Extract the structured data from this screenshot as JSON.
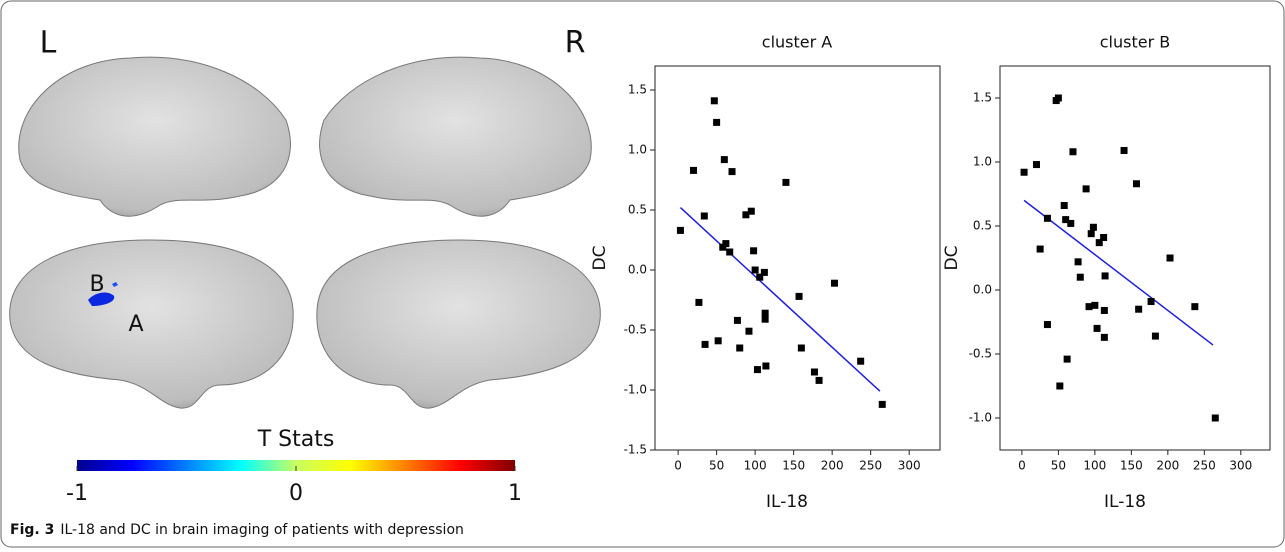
{
  "panel_labels": {
    "left": "L",
    "right": "R",
    "cluster_b": "B",
    "cluster_a": "A"
  },
  "colorbar": {
    "title": "T Stats",
    "lim": [
      -1,
      1
    ],
    "ticks": [
      -1,
      0,
      1
    ]
  },
  "caption": {
    "label": "Fig. 3",
    "text": "IL-18 and DC in brain imaging of patients with depression"
  },
  "chart_data": [
    {
      "type": "scatter",
      "title": "cluster A",
      "x_label": "IL-18",
      "y_label": "DC",
      "color": "#000000",
      "x": [
        3,
        20,
        27,
        34,
        35,
        47,
        50,
        52,
        58,
        60,
        62,
        67,
        70,
        77,
        80,
        88,
        92,
        95,
        98,
        100,
        103,
        106,
        112,
        113,
        113,
        114,
        140,
        157,
        160,
        177,
        183,
        203,
        237,
        265
      ],
      "y": [
        0.33,
        0.83,
        -0.27,
        0.45,
        -0.62,
        1.41,
        1.23,
        -0.59,
        0.19,
        0.92,
        0.22,
        0.15,
        0.82,
        -0.42,
        -0.65,
        0.46,
        -0.51,
        0.49,
        0.16,
        0.0,
        -0.83,
        -0.06,
        -0.02,
        -0.36,
        -0.41,
        -0.8,
        0.73,
        -0.22,
        -0.65,
        -0.85,
        -0.92,
        -0.11,
        -0.76,
        -1.12
      ],
      "fit_line": {
        "x": [
          3,
          262
        ],
        "y": [
          0.52,
          -1.01
        ],
        "color": "#1f1fe0"
      },
      "xlim": [
        -30,
        340
      ],
      "ylim": [
        -1.5,
        1.7
      ],
      "xticks": [
        0,
        50,
        100,
        150,
        200,
        250,
        300
      ],
      "yticks": [
        -1.5,
        {
          "value": -1,
          "label": "-1.0"
        },
        -0.5,
        {
          "value": 0,
          "label": "0.0"
        },
        0.5,
        {
          "value": 1,
          "label": "1.0"
        },
        1.5
      ]
    },
    {
      "type": "scatter",
      "title": "cluster B",
      "x_label": "IL-18",
      "y_label": "DC",
      "color": "#000000",
      "x": [
        3,
        20,
        25,
        35,
        35,
        47,
        50,
        52,
        58,
        60,
        62,
        67,
        70,
        77,
        80,
        88,
        92,
        95,
        98,
        100,
        103,
        106,
        112,
        113,
        113,
        114,
        140,
        157,
        160,
        177,
        183,
        203,
        237,
        265
      ],
      "y": [
        0.92,
        0.98,
        0.32,
        0.56,
        -0.27,
        1.48,
        1.5,
        -0.75,
        0.66,
        0.55,
        -0.54,
        0.52,
        1.08,
        0.22,
        0.1,
        0.79,
        -0.13,
        0.44,
        0.49,
        -0.12,
        -0.3,
        0.37,
        0.41,
        -0.16,
        -0.37,
        0.11,
        1.09,
        0.83,
        -0.15,
        -0.09,
        -0.36,
        0.25,
        -0.13,
        -1.0
      ],
      "fit_line": {
        "x": [
          3,
          262
        ],
        "y": [
          0.7,
          -0.43
        ],
        "color": "#1f1fe0"
      },
      "xlim": [
        -30,
        340
      ],
      "ylim": [
        -1.25,
        1.75
      ],
      "xticks": [
        0,
        50,
        100,
        150,
        200,
        250,
        300
      ],
      "yticks": [
        {
          "value": -1,
          "label": "-1.0"
        },
        -0.5,
        {
          "value": 0,
          "label": "0.0"
        },
        0.5,
        {
          "value": 1,
          "label": "1.0"
        },
        1.5
      ]
    }
  ]
}
